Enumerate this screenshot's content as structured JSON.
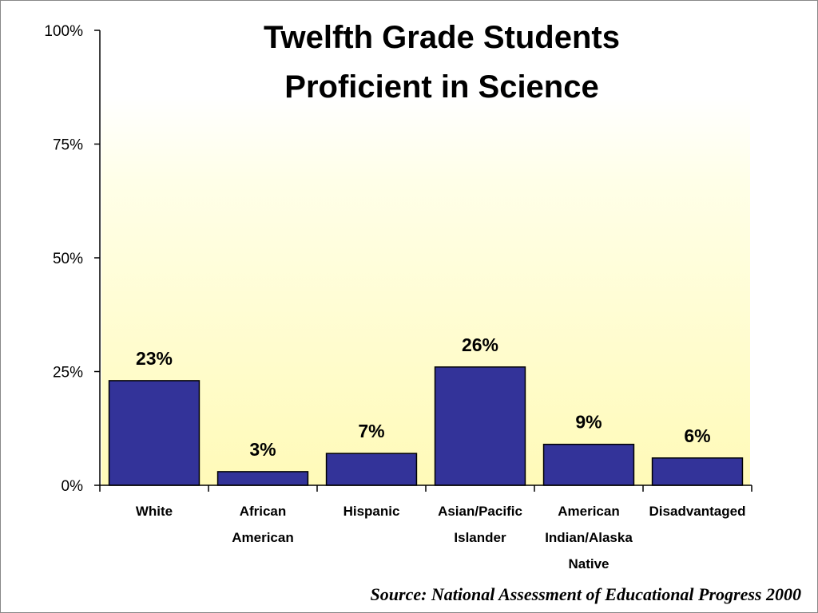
{
  "chart_data": {
    "type": "bar",
    "title_lines": [
      "Twelfth Grade Students",
      "Proficient in Science"
    ],
    "categories": [
      [
        "White"
      ],
      [
        "African",
        "American"
      ],
      [
        "Hispanic"
      ],
      [
        "Asian/Pacific",
        "Islander"
      ],
      [
        "American",
        "Indian/Alaska",
        "Native"
      ],
      [
        "Disadvantaged"
      ]
    ],
    "values": [
      23,
      3,
      7,
      26,
      9,
      6
    ],
    "data_labels": [
      "23%",
      "3%",
      "7%",
      "26%",
      "9%",
      "6%"
    ],
    "y_ticks": [
      0,
      25,
      50,
      75,
      100
    ],
    "y_tick_labels": [
      "0%",
      "25%",
      "50%",
      "75%",
      "100%"
    ],
    "ylim": [
      0,
      100
    ],
    "xlabel": "",
    "ylabel": "",
    "grid": false,
    "legend": "none",
    "bar_color": "#333399",
    "background_gradient": [
      "#ffffe6",
      "#fffac0"
    ]
  },
  "source_note": "Source: National Assessment of Educational Progress 2000"
}
